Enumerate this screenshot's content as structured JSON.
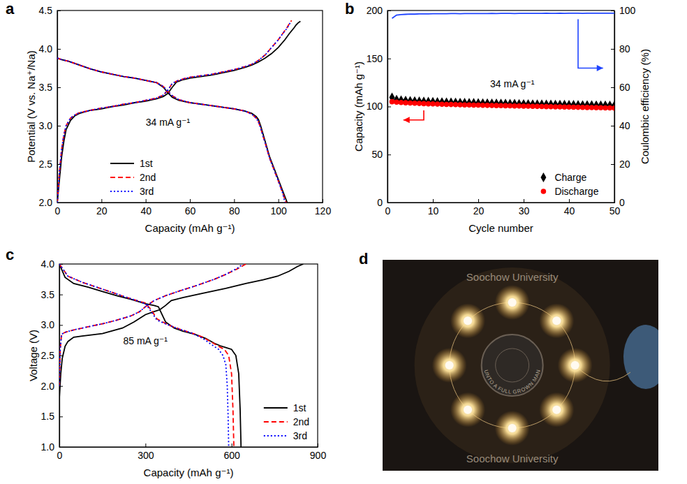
{
  "chart_data": [
    {
      "type": "line",
      "label": "a",
      "x_label": "Capacity (mAh g⁻¹)",
      "y_label": "Potential (V vs. Na⁺/Na)",
      "xlim": [
        0,
        120
      ],
      "ylim": [
        2.0,
        4.5
      ],
      "xticks": [
        0,
        20,
        40,
        60,
        80,
        100,
        120
      ],
      "yticks": [
        {
          "value": 2.0,
          "label": "2.0"
        },
        {
          "value": 2.5,
          "label": "2.5"
        },
        {
          "value": 3.0,
          "label": "3.0"
        },
        {
          "value": 3.5,
          "label": "3.5"
        },
        {
          "value": 4.0,
          "label": "4.0"
        },
        {
          "value": 4.5,
          "label": "4.5"
        }
      ],
      "annotations": [
        "34 mA g⁻¹"
      ],
      "legend": "bottom",
      "series": [
        {
          "name": "1st",
          "color": "#000000",
          "line_style": "solid",
          "x": [
            0,
            1,
            2,
            3,
            4,
            6,
            8,
            10,
            15,
            20,
            25,
            30,
            35,
            40,
            45,
            48,
            50,
            52,
            54,
            57,
            60,
            65,
            70,
            75,
            80,
            85,
            88,
            91,
            94,
            97,
            100,
            103,
            105,
            107,
            108,
            109,
            110,
            null,
            0,
            2,
            5,
            10,
            15,
            20,
            25,
            30,
            35,
            40,
            45,
            48,
            50,
            52,
            55,
            60,
            65,
            70,
            75,
            80,
            85,
            88,
            90,
            91,
            92,
            93,
            94,
            96,
            98,
            100,
            102,
            104
          ],
          "values": [
            2.0,
            2.3,
            2.6,
            2.8,
            2.95,
            3.07,
            3.13,
            3.16,
            3.2,
            3.22,
            3.25,
            3.27,
            3.3,
            3.32,
            3.35,
            3.38,
            3.42,
            3.5,
            3.57,
            3.6,
            3.62,
            3.64,
            3.66,
            3.69,
            3.72,
            3.76,
            3.79,
            3.83,
            3.88,
            3.94,
            4.02,
            4.12,
            4.2,
            4.27,
            4.31,
            4.34,
            4.36,
            null,
            3.88,
            3.86,
            3.84,
            3.79,
            3.74,
            3.7,
            3.67,
            3.64,
            3.62,
            3.59,
            3.56,
            3.5,
            3.43,
            3.37,
            3.33,
            3.3,
            3.28,
            3.26,
            3.24,
            3.22,
            3.19,
            3.16,
            3.12,
            3.08,
            3.0,
            2.9,
            2.8,
            2.6,
            2.45,
            2.3,
            2.15,
            2.0
          ]
        },
        {
          "name": "2nd",
          "color": "#ff0000",
          "line_style": "dashed",
          "x": [
            0,
            1,
            2,
            3,
            4,
            6,
            8,
            10,
            15,
            20,
            25,
            30,
            35,
            40,
            45,
            48,
            50,
            52,
            54,
            57,
            60,
            65,
            70,
            75,
            80,
            85,
            88,
            91,
            94,
            97,
            100,
            102,
            104,
            105,
            106,
            null,
            0,
            2,
            5,
            10,
            15,
            20,
            25,
            30,
            35,
            40,
            45,
            48,
            50,
            52,
            55,
            60,
            65,
            70,
            75,
            80,
            85,
            88,
            90,
            91,
            92,
            93,
            94,
            96,
            98,
            100,
            102,
            103.5
          ],
          "values": [
            2.0,
            2.4,
            2.7,
            2.88,
            3.0,
            3.1,
            3.14,
            3.17,
            3.2,
            3.23,
            3.25,
            3.28,
            3.3,
            3.33,
            3.36,
            3.4,
            3.46,
            3.55,
            3.58,
            3.61,
            3.63,
            3.65,
            3.67,
            3.7,
            3.73,
            3.77,
            3.8,
            3.85,
            3.92,
            4.02,
            4.12,
            4.2,
            4.28,
            4.33,
            4.37,
            null,
            3.88,
            3.86,
            3.84,
            3.79,
            3.74,
            3.7,
            3.67,
            3.64,
            3.62,
            3.59,
            3.56,
            3.51,
            3.45,
            3.39,
            3.34,
            3.3,
            3.28,
            3.26,
            3.24,
            3.22,
            3.19,
            3.15,
            3.1,
            3.05,
            2.97,
            2.87,
            2.78,
            2.58,
            2.43,
            2.28,
            2.12,
            2.0
          ]
        },
        {
          "name": "3rd",
          "color": "#0000ff",
          "line_style": "dotted",
          "x": [
            0,
            1,
            2,
            3,
            4,
            6,
            8,
            10,
            15,
            20,
            25,
            30,
            35,
            40,
            45,
            48,
            50,
            52,
            54,
            57,
            60,
            65,
            70,
            75,
            80,
            85,
            88,
            91,
            94,
            97,
            100,
            102,
            104,
            105,
            105.5,
            null,
            0,
            2,
            5,
            10,
            15,
            20,
            25,
            30,
            35,
            40,
            45,
            48,
            50,
            52,
            55,
            60,
            65,
            70,
            75,
            80,
            85,
            88,
            90,
            91,
            92,
            93,
            94,
            96,
            98,
            100,
            102,
            103
          ],
          "values": [
            2.0,
            2.4,
            2.7,
            2.88,
            3.0,
            3.1,
            3.14,
            3.17,
            3.2,
            3.23,
            3.25,
            3.28,
            3.3,
            3.33,
            3.36,
            3.4,
            3.46,
            3.55,
            3.58,
            3.61,
            3.63,
            3.65,
            3.67,
            3.7,
            3.73,
            3.77,
            3.8,
            3.85,
            3.92,
            4.02,
            4.12,
            4.2,
            4.27,
            4.32,
            4.35,
            null,
            3.88,
            3.86,
            3.84,
            3.79,
            3.74,
            3.7,
            3.67,
            3.64,
            3.62,
            3.59,
            3.56,
            3.51,
            3.45,
            3.39,
            3.34,
            3.3,
            3.28,
            3.26,
            3.24,
            3.22,
            3.19,
            3.15,
            3.1,
            3.05,
            2.97,
            2.87,
            2.78,
            2.58,
            2.43,
            2.28,
            2.12,
            2.0
          ]
        }
      ]
    },
    {
      "type": "line",
      "label": "b",
      "x_label": "Cycle number",
      "y_label": "Capacity (mAh g⁻¹)",
      "y2_label": "Coulombic efficiency (%)",
      "xlim": [
        0,
        50
      ],
      "ylim": [
        0,
        200
      ],
      "y2lim": [
        0,
        100
      ],
      "xticks": [
        0,
        10,
        20,
        30,
        40,
        50
      ],
      "yticks": [
        0,
        50,
        100,
        150,
        200
      ],
      "y2ticks": [
        0,
        20,
        40,
        60,
        80,
        100
      ],
      "annotations": [
        "34 mA g⁻¹"
      ],
      "legend": "lower right",
      "x": [
        1,
        2,
        3,
        4,
        5,
        6,
        7,
        8,
        9,
        10,
        11,
        12,
        13,
        14,
        15,
        16,
        17,
        18,
        19,
        20,
        21,
        22,
        23,
        24,
        25,
        26,
        27,
        28,
        29,
        30,
        31,
        32,
        33,
        34,
        35,
        36,
        37,
        38,
        39,
        40,
        41,
        42,
        43,
        44,
        45,
        46,
        47,
        48,
        49,
        50
      ],
      "series": [
        {
          "name": "Charge",
          "color": "#000000",
          "marker": "diamond",
          "line_style": "none",
          "values": [
            109.5,
            107.2,
            106.6,
            106.2,
            105.9,
            105.7,
            105.5,
            105.3,
            105.1,
            105.0,
            104.8,
            104.7,
            104.5,
            104.4,
            104.3,
            104.1,
            104.0,
            103.9,
            103.8,
            103.7,
            103.6,
            103.5,
            103.4,
            103.3,
            103.2,
            103.1,
            103.0,
            102.9,
            102.8,
            102.7,
            102.6,
            102.5,
            102.4,
            102.4,
            102.3,
            102.2,
            102.1,
            102.0,
            102.0,
            101.9,
            101.8,
            101.7,
            101.6,
            101.6,
            101.5,
            101.4,
            101.3,
            101.3,
            101.2,
            101.1
          ]
        },
        {
          "name": "Discharge",
          "color": "#ff0000",
          "marker": "circle",
          "line_style": "none",
          "values": [
            105.0,
            104.6,
            104.2,
            103.9,
            103.6,
            103.4,
            103.2,
            103.0,
            102.8,
            102.7,
            102.5,
            102.4,
            102.2,
            102.1,
            102.0,
            101.8,
            101.7,
            101.6,
            101.5,
            101.4,
            101.3,
            101.2,
            101.1,
            101.0,
            100.9,
            100.8,
            100.7,
            100.6,
            100.5,
            100.4,
            100.3,
            100.2,
            100.1,
            100.0,
            99.9,
            99.8,
            99.7,
            99.6,
            99.5,
            99.4,
            99.3,
            99.2,
            99.1,
            99.0,
            98.9,
            98.8,
            98.7,
            98.6,
            98.5,
            98.4
          ]
        },
        {
          "color": "#1f44ff",
          "line_style": "solid",
          "axis": "y2",
          "values": [
            95.9,
            97.6,
            97.9,
            98.0,
            98.1,
            98.1,
            98.2,
            98.2,
            98.2,
            98.3,
            98.3,
            98.3,
            98.3,
            98.4,
            98.4,
            98.3,
            98.4,
            98.4,
            98.4,
            98.4,
            98.4,
            98.4,
            98.5,
            98.4,
            98.5,
            98.5,
            98.5,
            98.4,
            98.5,
            98.5,
            98.5,
            98.5,
            98.5,
            98.5,
            98.6,
            98.5,
            98.5,
            98.6,
            98.5,
            98.6,
            98.6,
            98.6,
            98.5,
            98.6,
            98.6,
            98.6,
            98.6,
            98.6,
            98.6,
            98.6
          ]
        }
      ]
    },
    {
      "type": "line",
      "label": "c",
      "x_label": "Capacity (mAh g⁻¹)",
      "y_label": "Voltage (V)",
      "xlim": [
        0,
        900
      ],
      "ylim": [
        1.0,
        4.0
      ],
      "xticks": [
        0,
        300,
        600,
        900
      ],
      "yticks": [
        {
          "value": 1.0,
          "label": "1.0"
        },
        {
          "value": 1.5,
          "label": "1.5"
        },
        {
          "value": 2.0,
          "label": "2.0"
        },
        {
          "value": 2.5,
          "label": "2.5"
        },
        {
          "value": 3.0,
          "label": "3.0"
        },
        {
          "value": 3.5,
          "label": "3.5"
        },
        {
          "value": 4.0,
          "label": "4.0"
        }
      ],
      "annotations": [
        "85 mA g⁻¹"
      ],
      "legend": "lower right",
      "series": [
        {
          "name": "1st",
          "color": "#000000",
          "line_style": "solid",
          "x": [
            0,
            5,
            10,
            20,
            30,
            50,
            80,
            150,
            220,
            260,
            300,
            330,
            350,
            370,
            390,
            430,
            500,
            580,
            650,
            710,
            760,
            800,
            830,
            850,
            null,
            0,
            20,
            50,
            100,
            150,
            200,
            250,
            300,
            330,
            345,
            355,
            370,
            400,
            430,
            470,
            510,
            540,
            560,
            580,
            600,
            615,
            625,
            630,
            633
          ],
          "values": [
            1.8,
            2.2,
            2.45,
            2.65,
            2.73,
            2.8,
            2.82,
            2.86,
            2.95,
            3.05,
            3.17,
            3.22,
            3.25,
            3.32,
            3.4,
            3.45,
            3.52,
            3.6,
            3.68,
            3.74,
            3.8,
            3.88,
            3.96,
            4.0,
            null,
            4.0,
            3.78,
            3.68,
            3.62,
            3.55,
            3.48,
            3.42,
            3.35,
            3.32,
            3.3,
            3.2,
            3.05,
            2.95,
            2.9,
            2.85,
            2.78,
            2.7,
            2.66,
            2.63,
            2.6,
            2.5,
            2.2,
            1.6,
            1.0
          ]
        },
        {
          "name": "2nd",
          "color": "#ff0000",
          "line_style": "dashed",
          "x": [
            0,
            3,
            8,
            20,
            50,
            100,
            150,
            200,
            250,
            280,
            300,
            330,
            370,
            420,
            480,
            540,
            580,
            620,
            650,
            null,
            0,
            30,
            80,
            130,
            180,
            230,
            270,
            300,
            320,
            340,
            380,
            420,
            460,
            500,
            530,
            555,
            575,
            590,
            600,
            605,
            608
          ],
          "values": [
            2.0,
            2.6,
            2.85,
            2.88,
            2.92,
            2.97,
            3.02,
            3.08,
            3.15,
            3.22,
            3.3,
            3.4,
            3.48,
            3.56,
            3.65,
            3.75,
            3.83,
            3.92,
            4.0,
            null,
            4.0,
            3.8,
            3.7,
            3.62,
            3.54,
            3.46,
            3.4,
            3.36,
            3.25,
            3.1,
            3.0,
            2.93,
            2.87,
            2.8,
            2.72,
            2.65,
            2.6,
            2.5,
            2.2,
            1.6,
            1.0
          ]
        },
        {
          "name": "3rd",
          "color": "#0000ff",
          "line_style": "dotted",
          "x": [
            0,
            3,
            8,
            20,
            50,
            100,
            150,
            200,
            250,
            280,
            300,
            330,
            370,
            420,
            480,
            540,
            580,
            620,
            640,
            null,
            0,
            30,
            80,
            130,
            180,
            230,
            270,
            300,
            320,
            340,
            380,
            420,
            460,
            500,
            530,
            555,
            570,
            580,
            585,
            588,
            590
          ],
          "values": [
            2.0,
            2.6,
            2.85,
            2.88,
            2.92,
            2.97,
            3.02,
            3.08,
            3.15,
            3.22,
            3.3,
            3.4,
            3.48,
            3.56,
            3.65,
            3.75,
            3.83,
            3.93,
            4.0,
            null,
            4.0,
            3.8,
            3.7,
            3.62,
            3.54,
            3.46,
            3.4,
            3.35,
            3.22,
            3.08,
            3.0,
            2.93,
            2.87,
            2.78,
            2.68,
            2.6,
            2.5,
            2.35,
            2.0,
            1.5,
            1.0
          ]
        }
      ]
    },
    {
      "type": "image",
      "label": "d",
      "texts": [
        "Soochow University",
        "Soochow University"
      ],
      "seal_text": "UNTO A FULL GROWN MAN"
    }
  ]
}
